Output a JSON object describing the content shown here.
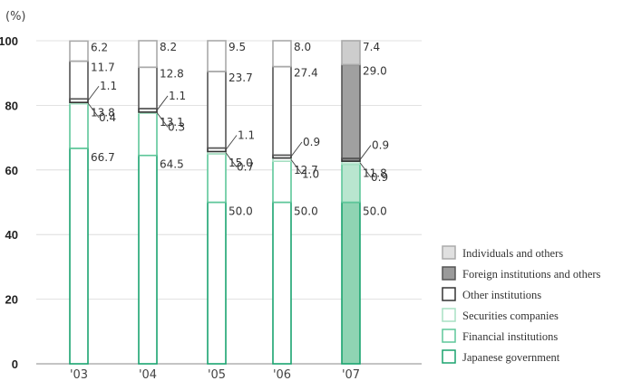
{
  "chart_data": {
    "type": "bar",
    "stacked": true,
    "unit_label": "(%)",
    "categories": [
      "'03",
      "'04",
      "'05",
      "'06",
      "'07"
    ],
    "y_ticks": [
      "0",
      "20",
      "40",
      "60",
      "80",
      "100"
    ],
    "ylim": [
      0,
      100
    ],
    "grid": true,
    "legend_position": "right",
    "series": [
      {
        "name": "Japanese government",
        "values": [
          66.7,
          64.5,
          50.0,
          50.0,
          50.0
        ],
        "labels": [
          "66.7",
          "64.5",
          "50.0",
          "50.0",
          "50.0"
        ],
        "color": "#1aa36f"
      },
      {
        "name": "Financial institutions",
        "values": [
          13.8,
          13.1,
          15.0,
          12.7,
          11.8
        ],
        "labels": [
          "13.8",
          "13.1",
          "15.0",
          "12.7",
          "11.8"
        ],
        "color": "#5ec79a"
      },
      {
        "name": "Securities companies",
        "values": [
          0.4,
          0.3,
          0.7,
          1.0,
          0.9
        ],
        "labels": [
          "0.4",
          "0.3",
          "0.7",
          "1.0",
          "0.9"
        ],
        "color": "#a8e0c4"
      },
      {
        "name": "Other institutions",
        "values": [
          1.1,
          1.1,
          1.1,
          0.9,
          0.9
        ],
        "labels": [
          "1.1",
          "1.1",
          "1.1",
          "0.9",
          "0.9"
        ],
        "color": "#333333"
      },
      {
        "name": "Foreign institutions and others",
        "values": [
          11.7,
          12.8,
          23.7,
          27.4,
          29.0
        ],
        "labels": [
          "11.7",
          "12.8",
          "23.7",
          "27.4",
          "29.0"
        ],
        "color": "#555555"
      },
      {
        "name": "Individuals and others",
        "values": [
          6.2,
          8.2,
          9.5,
          8.0,
          7.4
        ],
        "labels": [
          "6.2",
          "8.2",
          "9.5",
          "8.0",
          "7.4"
        ],
        "color": "#aaaaaa"
      }
    ],
    "fill_colors_last_bar": [
      "#8fd4b3",
      "#b9e6cf",
      "#d5f0e2",
      "#8a8a8a",
      "#a0a0a0",
      "#cdcdcd"
    ]
  }
}
